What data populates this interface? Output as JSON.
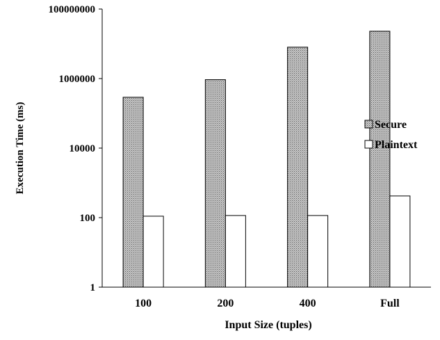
{
  "chart_data": {
    "type": "bar",
    "title": "",
    "xlabel": "Input Size (tuples)",
    "ylabel": "Execution Time (ms)",
    "yscale": "log",
    "ylim": [
      1,
      100000000
    ],
    "yticks": [
      1,
      100,
      10000,
      1000000,
      100000000
    ],
    "ytick_labels": [
      "1",
      "100",
      "10000",
      "1000000",
      "100000000"
    ],
    "categories": [
      "100",
      "200",
      "400",
      "Full"
    ],
    "grid": false,
    "legend_position": "right",
    "series": [
      {
        "name": "Secure",
        "values": [
          290000,
          930000,
          8000000,
          23000000
        ],
        "fill": "dotted-gray"
      },
      {
        "name": "Plaintext",
        "values": [
          110,
          115,
          115,
          420
        ],
        "fill": "#ffffff"
      }
    ]
  }
}
